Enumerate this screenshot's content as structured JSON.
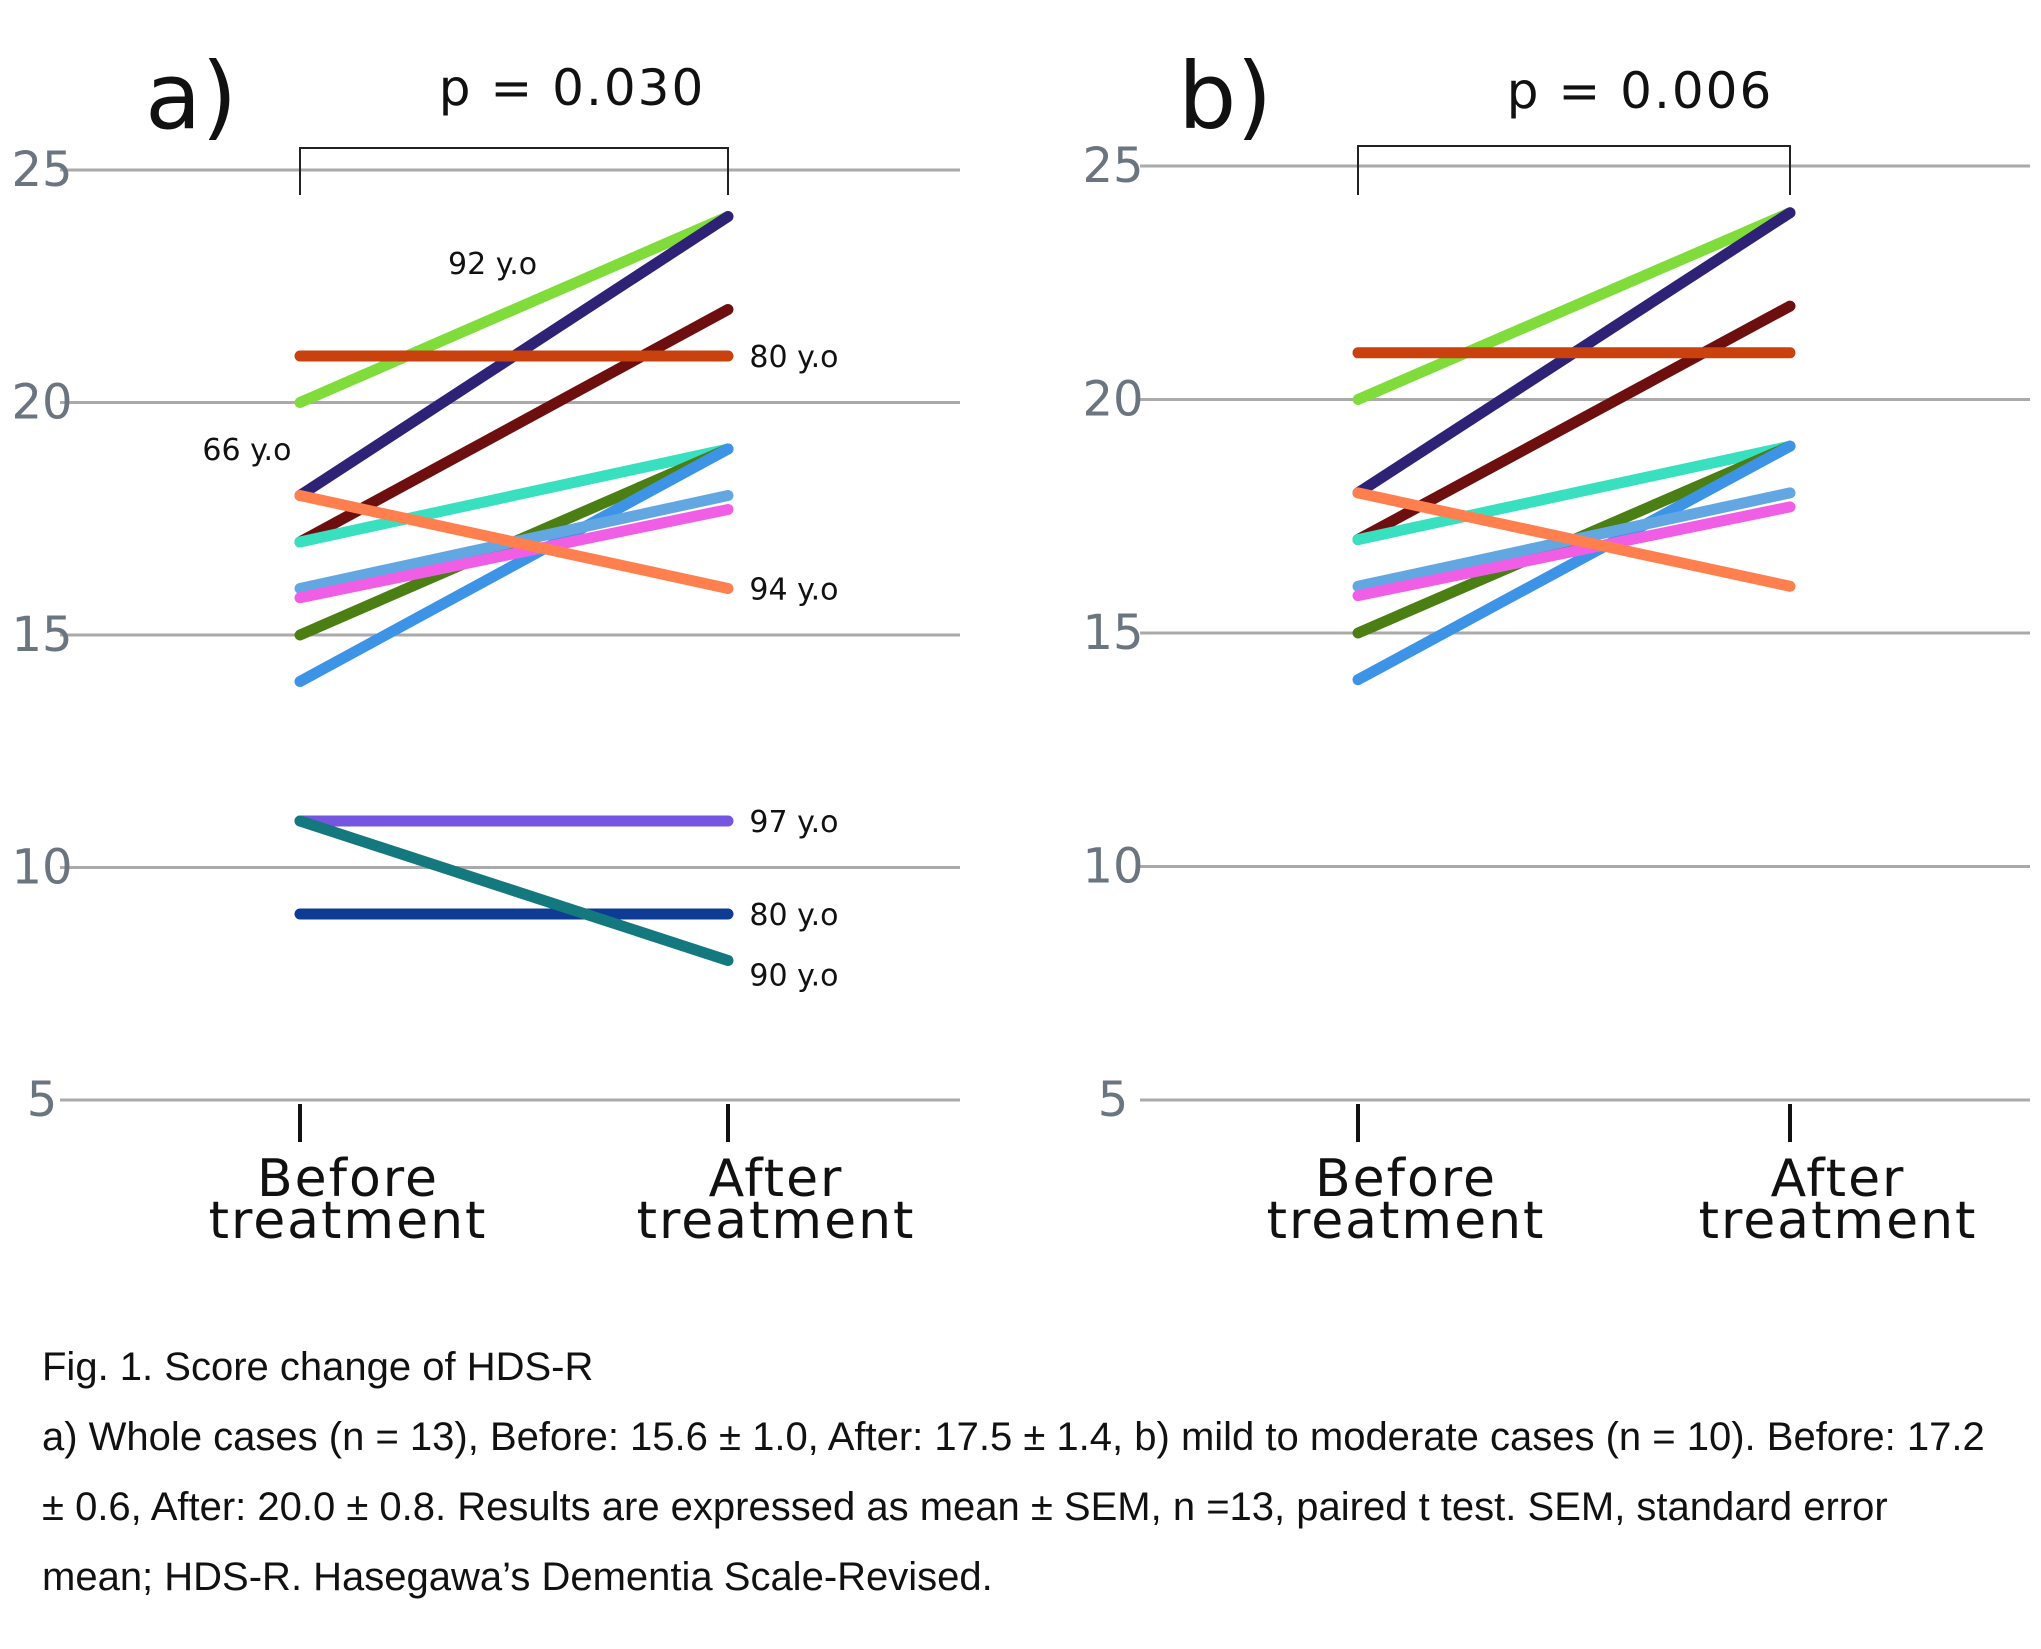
{
  "chart_data": [
    {
      "type": "line",
      "panel_label": "a)",
      "annotation": "p = 0.030",
      "categories": [
        "Before",
        "After"
      ],
      "category_labels": [
        [
          "Before",
          "treatment"
        ],
        [
          "After",
          "treatment"
        ]
      ],
      "yticks": [
        5,
        10,
        15,
        20,
        25
      ],
      "ylim": [
        5,
        25
      ],
      "grid": true,
      "series": [
        {
          "values": [
            20,
            24
          ],
          "color": "#7fdc3a"
        },
        {
          "values": [
            18,
            24
          ],
          "color": "#2e2277"
        },
        {
          "values": [
            17,
            22
          ],
          "color": "#6e0f0f"
        },
        {
          "values": [
            21,
            21
          ],
          "color": "#c9410c"
        },
        {
          "values": [
            17,
            19
          ],
          "color": "#38e0c0"
        },
        {
          "values": [
            15,
            19
          ],
          "color": "#4b7f14"
        },
        {
          "values": [
            14,
            19
          ],
          "color": "#3d94e6"
        },
        {
          "values": [
            16,
            18
          ],
          "color": "#63a7e2"
        },
        {
          "values": [
            15.8,
            17.7
          ],
          "color": "#f05ee6"
        },
        {
          "values": [
            18,
            16
          ],
          "color": "#ff7f4f"
        },
        {
          "values": [
            11,
            11
          ],
          "color": "#7456e0"
        },
        {
          "values": [
            9,
            9
          ],
          "color": "#0e3b94"
        },
        {
          "values": [
            11,
            8
          ],
          "color": "#14787f"
        }
      ],
      "annotations": [
        {
          "text": "92 y.o",
          "x": 0.45,
          "y": 23,
          "anchor": "middle"
        },
        {
          "text": "66 y.o",
          "x": -0.02,
          "y": 19,
          "anchor": "end"
        },
        {
          "text": "80 y.o",
          "x": 1.05,
          "y": 21,
          "anchor": "start"
        },
        {
          "text": "94 y.o",
          "x": 1.05,
          "y": 16,
          "anchor": "start"
        },
        {
          "text": "97 y.o",
          "x": 1.05,
          "y": 11,
          "anchor": "start"
        },
        {
          "text": "80 y.o",
          "x": 1.05,
          "y": 9,
          "anchor": "start"
        },
        {
          "text": "90 y.o",
          "x": 1.05,
          "y": 7.7,
          "anchor": "start"
        }
      ]
    },
    {
      "type": "line",
      "panel_label": "b)",
      "annotation": "p = 0.006",
      "categories": [
        "Before",
        "After"
      ],
      "category_labels": [
        [
          "Before",
          "treatment"
        ],
        [
          "After",
          "treatment"
        ]
      ],
      "yticks": [
        5,
        10,
        15,
        20,
        25
      ],
      "ylim": [
        5,
        25
      ],
      "grid": true,
      "series": [
        {
          "values": [
            20,
            24
          ],
          "color": "#7fdc3a"
        },
        {
          "values": [
            18,
            24
          ],
          "color": "#2e2277"
        },
        {
          "values": [
            17,
            22
          ],
          "color": "#6e0f0f"
        },
        {
          "values": [
            21,
            21
          ],
          "color": "#c9410c"
        },
        {
          "values": [
            17,
            19
          ],
          "color": "#38e0c0"
        },
        {
          "values": [
            15,
            19
          ],
          "color": "#4b7f14"
        },
        {
          "values": [
            14,
            19
          ],
          "color": "#3d94e6"
        },
        {
          "values": [
            16,
            18
          ],
          "color": "#63a7e2"
        },
        {
          "values": [
            15.8,
            17.7
          ],
          "color": "#f05ee6"
        },
        {
          "values": [
            18,
            16
          ],
          "color": "#ff7f4f"
        }
      ],
      "annotations": []
    }
  ],
  "caption": {
    "title": "Fig. 1. Score change of HDS-R",
    "body": "a) Whole cases (n = 13), Before: 15.6 ± 1.0, After: 17.5 ± 1.4, b) mild to moderate cases (n = 10). Before: 17.2 ± 0.6, After: 20.0 ± 0.8. Results are expressed as mean ± SEM, n =13, paired t test. SEM, standard error mean; HDS-R. Hasegawa’s Dementia Scale-Revised."
  }
}
